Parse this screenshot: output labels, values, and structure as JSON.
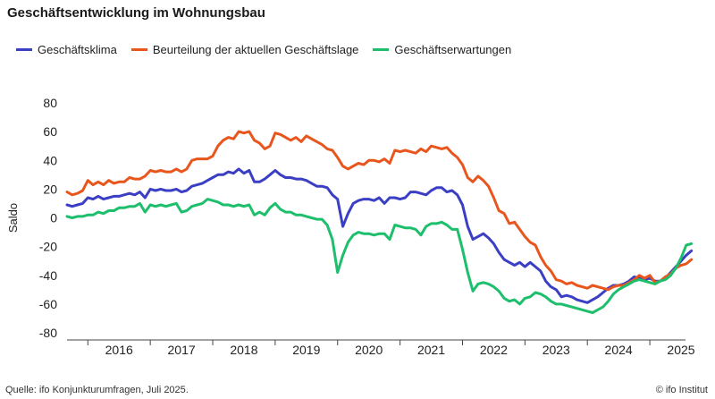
{
  "title": "Geschäftsentwicklung im Wohnungsbau",
  "source": "Quelle: ifo Konjunkturumfragen,  Juli 2025.",
  "credit": "© ifo Institut",
  "chart_data": {
    "type": "line",
    "ylabel": "Saldo",
    "xlabel": "",
    "ylim": [
      -80,
      80
    ],
    "yticks": [
      80,
      60,
      40,
      20,
      0,
      -20,
      -40,
      -60,
      -80
    ],
    "year_labels": [
      "2016",
      "2017",
      "2018",
      "2019",
      "2020",
      "2021",
      "2022",
      "2023",
      "2024",
      "2025"
    ],
    "x_start": "2015-09",
    "x_end": "2025-07",
    "grid": false,
    "legend_position": "top-left",
    "series": [
      {
        "name": "Geschäftsklima",
        "color": "#3b3fc4",
        "values": [
          9,
          8,
          9,
          10,
          14,
          13,
          15,
          13,
          14,
          15,
          15,
          16,
          17,
          16,
          18,
          14,
          20,
          19,
          20,
          19,
          19,
          20,
          18,
          19,
          22,
          23,
          24,
          26,
          28,
          30,
          30,
          32,
          31,
          34,
          31,
          33,
          25,
          25,
          27,
          30,
          33,
          30,
          28,
          28,
          27,
          27,
          26,
          24,
          22,
          22,
          21,
          16,
          13,
          -6,
          3,
          10,
          12,
          13,
          13,
          12,
          14,
          10,
          14,
          14,
          13,
          14,
          18,
          18,
          17,
          16,
          19,
          21,
          21,
          18,
          19,
          16,
          9,
          -6,
          -15,
          -13,
          -11,
          -14,
          -18,
          -24,
          -29,
          -31,
          -33,
          -31,
          -34,
          -31,
          -34,
          -37,
          -44,
          -48,
          -50,
          -55,
          -54,
          -55,
          -57,
          -58,
          -59,
          -57,
          -55,
          -52,
          -49,
          -47,
          -47,
          -46,
          -44,
          -41,
          -42,
          -43,
          -42,
          -44,
          -44,
          -42,
          -38,
          -34,
          -30,
          -26,
          -23
        ]
      },
      {
        "name": "Beurteilung der aktuellen Geschäftslage",
        "color": "#e8561e",
        "values": [
          18,
          16,
          17,
          19,
          26,
          23,
          25,
          23,
          26,
          24,
          25,
          25,
          28,
          27,
          27,
          29,
          33,
          32,
          33,
          32,
          32,
          34,
          32,
          34,
          40,
          41,
          41,
          41,
          43,
          50,
          54,
          56,
          55,
          60,
          59,
          60,
          54,
          52,
          48,
          50,
          59,
          58,
          56,
          54,
          56,
          53,
          57,
          55,
          53,
          51,
          48,
          47,
          42,
          36,
          34,
          36,
          38,
          37,
          40,
          40,
          39,
          41,
          38,
          47,
          46,
          47,
          46,
          45,
          48,
          46,
          50,
          49,
          48,
          49,
          45,
          42,
          37,
          28,
          25,
          29,
          26,
          22,
          14,
          5,
          3,
          -4,
          -3,
          -8,
          -13,
          -17,
          -19,
          -27,
          -33,
          -37,
          -43,
          -44,
          -46,
          -45,
          -47,
          -48,
          -49,
          -47,
          -48,
          -49,
          -50,
          -48,
          -47,
          -47,
          -45,
          -43,
          -40,
          -42,
          -40,
          -45,
          -44,
          -41,
          -39,
          -35,
          -33,
          -32,
          -29
        ]
      },
      {
        "name": "Geschäftserwartungen",
        "color": "#1dbf6c",
        "values": [
          1,
          0,
          1,
          1,
          2,
          2,
          4,
          3,
          5,
          5,
          7,
          7,
          8,
          8,
          10,
          4,
          9,
          8,
          9,
          8,
          9,
          10,
          4,
          5,
          8,
          9,
          10,
          13,
          12,
          11,
          9,
          9,
          8,
          9,
          8,
          9,
          2,
          4,
          2,
          7,
          10,
          6,
          4,
          4,
          2,
          2,
          1,
          0,
          -1,
          -1,
          -5,
          -15,
          -38,
          -26,
          -17,
          -12,
          -10,
          -11,
          -11,
          -12,
          -11,
          -11,
          -15,
          -5,
          -6,
          -7,
          -7,
          -8,
          -12,
          -6,
          -4,
          -4,
          -3,
          -5,
          -8,
          -8,
          -22,
          -38,
          -51,
          -46,
          -45,
          -46,
          -48,
          -51,
          -56,
          -58,
          -57,
          -60,
          -56,
          -55,
          -52,
          -53,
          -55,
          -58,
          -60,
          -60,
          -61,
          -62,
          -63,
          -64,
          -65,
          -66,
          -64,
          -62,
          -58,
          -53,
          -50,
          -48,
          -46,
          -44,
          -43,
          -44,
          -45,
          -46,
          -44,
          -43,
          -40,
          -35,
          -28,
          -19,
          -18
        ]
      }
    ]
  }
}
